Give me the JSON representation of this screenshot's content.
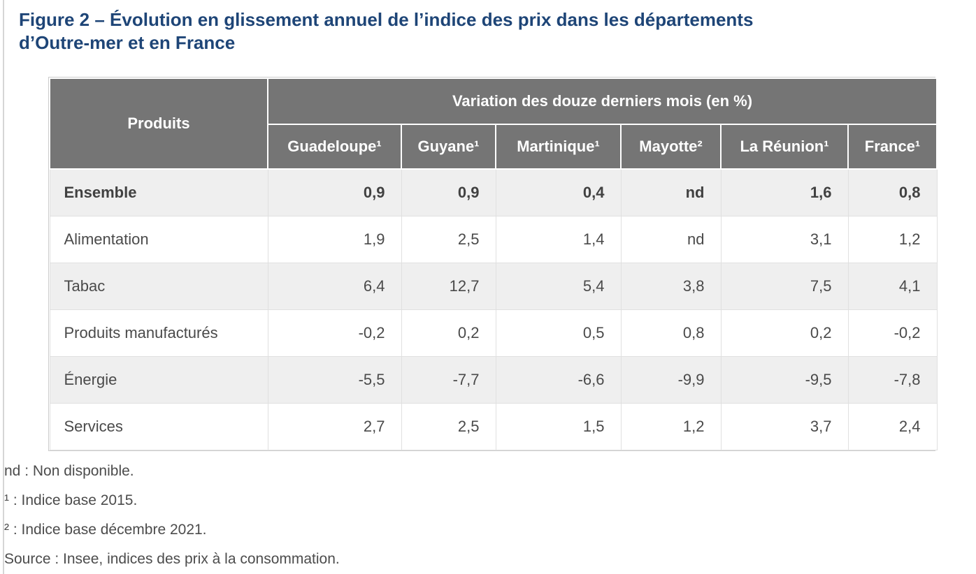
{
  "title_lines": [
    "Figure 2 – Évolution en glissement annuel de l’indice des prix dans les départements",
    "d’Outre-mer et en France"
  ],
  "chart_data": {
    "type": "table",
    "title": "Figure 2 – Évolution en glissement annuel de l’indice des prix dans les départements d’Outre-mer et en France",
    "row_header_label": "Produits",
    "group_header": "Variation des douze derniers mois (en %)",
    "columns": [
      "Guadeloupe¹",
      "Guyane¹",
      "Martinique¹",
      "Mayotte²",
      "La Réunion¹",
      "France¹"
    ],
    "rows": [
      {
        "label": "Ensemble",
        "emphasis": true,
        "values": [
          "0,9",
          "0,9",
          "0,4",
          "nd",
          "1,6",
          "0,8"
        ]
      },
      {
        "label": "Alimentation",
        "emphasis": false,
        "values": [
          "1,9",
          "2,5",
          "1,4",
          "nd",
          "3,1",
          "1,2"
        ]
      },
      {
        "label": "Tabac",
        "emphasis": false,
        "values": [
          "6,4",
          "12,7",
          "5,4",
          "3,8",
          "7,5",
          "4,1"
        ]
      },
      {
        "label": "Produits manufacturés",
        "emphasis": false,
        "values": [
          "-0,2",
          "0,2",
          "0,5",
          "0,8",
          "0,2",
          "-0,2"
        ]
      },
      {
        "label": "Énergie",
        "emphasis": false,
        "values": [
          "-5,5",
          "-7,7",
          "-6,6",
          "-9,9",
          "-9,5",
          "-7,8"
        ]
      },
      {
        "label": "Services",
        "emphasis": false,
        "values": [
          "2,7",
          "2,5",
          "1,5",
          "1,2",
          "3,7",
          "2,4"
        ]
      }
    ]
  },
  "footnotes": [
    "nd : Non disponible.",
    "¹ : Indice base 2015.",
    "² : Indice base décembre 2021.",
    "Source : Insee, indices des prix à la consommation."
  ],
  "colors": {
    "title": "#1e4577",
    "header_bg": "#757575",
    "header_text": "#ffffff",
    "row_alt_bg": "#efefef",
    "body_text": "#4a4a4a",
    "border": "#e0e0e0"
  }
}
